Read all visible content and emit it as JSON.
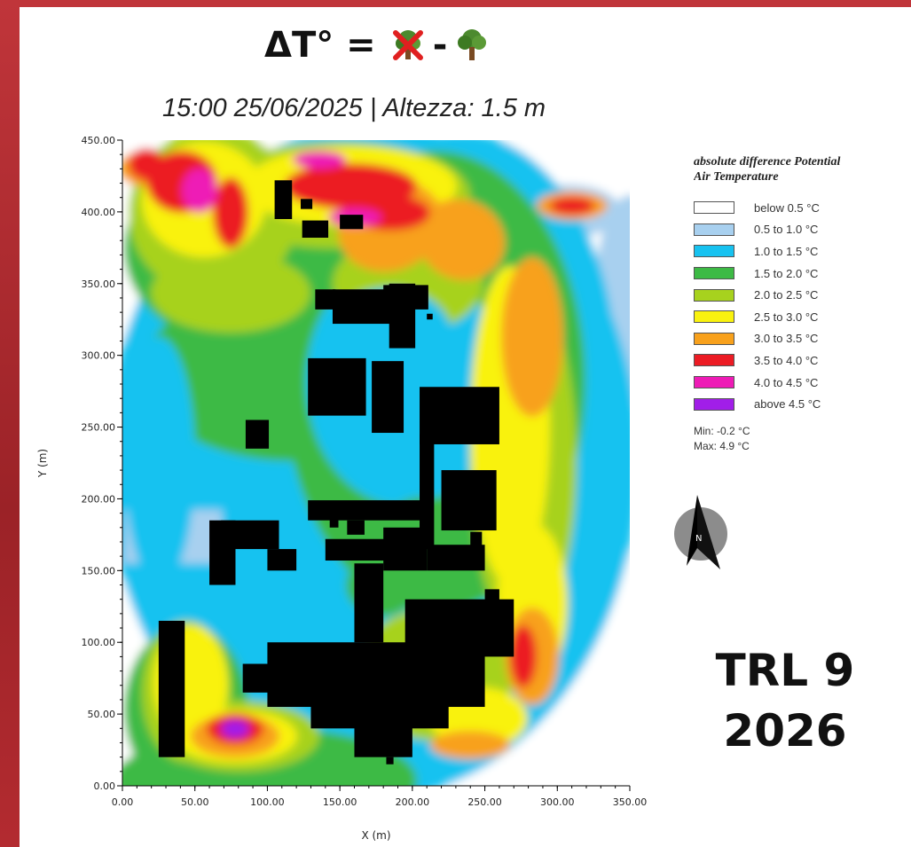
{
  "header": {
    "formula_lhs": "ΔT° =",
    "formula_minus": "-",
    "subtitle": "15:00 25/06/2025  |  Altezza: 1.5 m",
    "icons": [
      "no-tree-icon",
      "tree-icon"
    ]
  },
  "chart_data": {
    "type": "heatmap",
    "xlabel": "X (m)",
    "ylabel": "Y (m)",
    "xlim": [
      0,
      350
    ],
    "ylim": [
      0,
      450
    ],
    "xticks": [
      "0.00",
      "50.00",
      "100.00",
      "150.00",
      "200.00",
      "250.00",
      "300.00",
      "350.00"
    ],
    "yticks": [
      "0.00",
      "50.00",
      "100.00",
      "150.00",
      "200.00",
      "250.00",
      "300.00",
      "350.00",
      "400.00",
      "450.00"
    ],
    "legend": {
      "title_line1": "absolute difference Potential",
      "title_line2": "Air Temperature",
      "placement": "right",
      "items": [
        {
          "label": "below 0.5 °C",
          "color": "#ffffff"
        },
        {
          "label": "0.5 to 1.0 °C",
          "color": "#a8d0ef"
        },
        {
          "label": "1.0 to 1.5 °C",
          "color": "#17c2f0"
        },
        {
          "label": "1.5 to 2.0 °C",
          "color": "#3dba45"
        },
        {
          "label": "2.0 to 2.5 °C",
          "color": "#a7d21e"
        },
        {
          "label": "2.5 to 3.0 °C",
          "color": "#f9f20f"
        },
        {
          "label": "3.0 to 3.5 °C",
          "color": "#f8a11c"
        },
        {
          "label": "3.5 to 4.0 °C",
          "color": "#ec1c24"
        },
        {
          "label": "4.0 to 4.5 °C",
          "color": "#ee1bb6"
        },
        {
          "label": "above 4.5 °C",
          "color": "#a11ee8"
        }
      ]
    },
    "min_label": "Min: -0.2 °C",
    "max_label": "Max: 4.9 °C",
    "min": -0.2,
    "max": 4.9,
    "buildings_color": "#000000"
  },
  "badge": {
    "line1": "TRL 9",
    "line2": "2026"
  },
  "compass": {
    "letter": "N"
  }
}
